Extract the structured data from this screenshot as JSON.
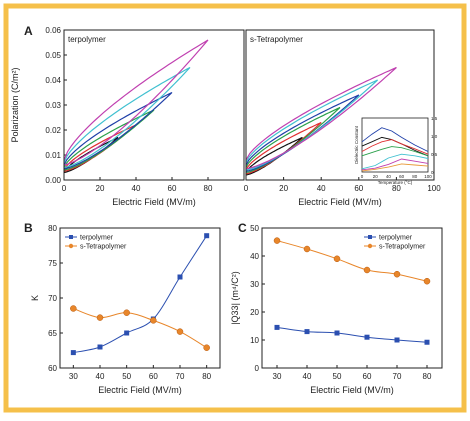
{
  "figure": {
    "border_color": "#f5c04a",
    "panel_labels": [
      "A",
      "B",
      "C"
    ]
  },
  "chart_data": [
    {
      "id": "A-left",
      "type": "line",
      "title": "terpolymer",
      "xlabel": "Electric Field (MV/m)",
      "ylabel": "Polarization (C/m²)",
      "xlim": [
        0,
        100
      ],
      "ylim": [
        0,
        0.06
      ],
      "xticks": [
        0,
        20,
        40,
        60,
        80
      ],
      "yticks": [
        0.0,
        0.01,
        0.02,
        0.03,
        0.04,
        0.05,
        0.06
      ],
      "ytick_labels": [
        "0.00",
        "0.01",
        "0.02",
        "0.03",
        "0.04",
        "0.05",
        "0.06"
      ],
      "series": [
        {
          "color": "#111111",
          "emax": 30,
          "pmax": 0.017,
          "pzero": 0.003,
          "prem": 0.003
        },
        {
          "color": "#e03030",
          "emax": 40,
          "pmax": 0.022,
          "pzero": 0.0035,
          "prem": 0.004
        },
        {
          "color": "#2aa04a",
          "emax": 50,
          "pmax": 0.028,
          "pzero": 0.004,
          "prem": 0.005
        },
        {
          "color": "#1f3fa8",
          "emax": 60,
          "pmax": 0.035,
          "pzero": 0.0045,
          "prem": 0.006
        },
        {
          "color": "#40c0d0",
          "emax": 70,
          "pmax": 0.045,
          "pzero": 0.005,
          "prem": 0.007
        },
        {
          "color": "#c040b0",
          "emax": 80,
          "pmax": 0.056,
          "pzero": 0.006,
          "prem": 0.008
        }
      ]
    },
    {
      "id": "A-right",
      "type": "line",
      "title": "s-Tetrapolymer",
      "xlabel": "Electric Field (MV/m)",
      "xlim": [
        0,
        100
      ],
      "ylim": [
        0,
        0.06
      ],
      "xticks": [
        0,
        20,
        40,
        60,
        80,
        100
      ],
      "series": [
        {
          "color": "#111111",
          "emax": 30,
          "pmax": 0.017,
          "pzero": 0.002,
          "prem": 0.003
        },
        {
          "color": "#e03030",
          "emax": 40,
          "pmax": 0.023,
          "pzero": 0.0025,
          "prem": 0.004
        },
        {
          "color": "#2aa04a",
          "emax": 50,
          "pmax": 0.029,
          "pzero": 0.003,
          "prem": 0.005
        },
        {
          "color": "#1f3fa8",
          "emax": 60,
          "pmax": 0.034,
          "pzero": 0.0035,
          "prem": 0.006
        },
        {
          "color": "#40c0d0",
          "emax": 70,
          "pmax": 0.04,
          "pzero": 0.004,
          "prem": 0.007
        },
        {
          "color": "#c040b0",
          "emax": 80,
          "pmax": 0.045,
          "pzero": 0.0045,
          "prem": 0.008
        }
      ],
      "inset": {
        "xlabel": "Temperature (°C)",
        "ylabel": "Dielectric Constant",
        "xlim": [
          0,
          100
        ],
        "xticks": [
          0,
          20,
          40,
          60,
          80,
          100
        ],
        "ylim_left": [
          0,
          1000
        ],
        "ylim_right": [
          0,
          1.5
        ],
        "right_ticks": [
          "0",
          "0.5",
          "1.0",
          "1.5"
        ],
        "series": [
          {
            "color": "#111111",
            "x": [
              0,
              15,
              30,
              45,
              60,
              80,
              100
            ],
            "y": [
              480,
              560,
              640,
              600,
              520,
              400,
              300
            ]
          },
          {
            "color": "#1f3fa8",
            "x": [
              0,
              15,
              30,
              45,
              60,
              80,
              100
            ],
            "y": [
              560,
              700,
              820,
              760,
              640,
              500,
              380
            ]
          },
          {
            "color": "#e03030",
            "x": [
              0,
              15,
              30,
              45,
              60,
              80,
              100
            ],
            "y": [
              380,
              480,
              560,
              600,
              520,
              430,
              330
            ]
          },
          {
            "color": "#2aa04a",
            "x": [
              0,
              15,
              30,
              45,
              60,
              80,
              100
            ],
            "y": [
              300,
              360,
              420,
              470,
              450,
              380,
              300
            ]
          },
          {
            "color": "#40c0d0",
            "x": [
              0,
              20,
              40,
              60,
              80,
              100
            ],
            "y": [
              60,
              120,
              260,
              330,
              300,
              250
            ]
          },
          {
            "color": "#c040b0",
            "x": [
              0,
              20,
              40,
              60,
              80,
              100
            ],
            "y": [
              40,
              70,
              140,
              240,
              200,
              160
            ]
          },
          {
            "color": "#e89a3a",
            "x": [
              0,
              20,
              40,
              60,
              80,
              100
            ],
            "y": [
              20,
              50,
              90,
              150,
              130,
              110
            ]
          }
        ]
      }
    },
    {
      "id": "B",
      "type": "line",
      "xlabel": "Electric Field (MV/m)",
      "ylabel": "K",
      "xlim": [
        25,
        85
      ],
      "ylim": [
        60,
        80
      ],
      "xticks": [
        30,
        40,
        50,
        60,
        70,
        80
      ],
      "yticks": [
        60,
        65,
        70,
        75,
        80
      ],
      "legend_position": "top-left",
      "series": [
        {
          "name": "terpolymer",
          "color": "#2b4fb0",
          "marker": "square",
          "x": [
            30,
            40,
            50,
            60,
            70,
            80
          ],
          "y": [
            62.2,
            63.0,
            65.0,
            67.0,
            73.0,
            78.9
          ]
        },
        {
          "name": "s-Tetrapolymer",
          "color": "#e8862a",
          "marker": "circle",
          "x": [
            30,
            40,
            50,
            60,
            70,
            80
          ],
          "y": [
            68.5,
            67.2,
            67.9,
            66.8,
            65.2,
            62.9
          ]
        }
      ]
    },
    {
      "id": "C",
      "type": "line",
      "xlabel": "Electric Field (MV/m)",
      "ylabel": "|Q33| (m⁴/C²)",
      "xlim": [
        25,
        85
      ],
      "ylim": [
        0,
        50
      ],
      "xticks": [
        30,
        40,
        50,
        60,
        70,
        80
      ],
      "yticks": [
        0,
        10,
        20,
        30,
        40,
        50
      ],
      "legend_position": "top-right",
      "series": [
        {
          "name": "terpolymer",
          "color": "#2b4fb0",
          "marker": "square",
          "x": [
            30,
            40,
            50,
            60,
            70,
            80
          ],
          "y": [
            14.5,
            13.0,
            12.5,
            11.0,
            10.0,
            9.2
          ]
        },
        {
          "name": "s-Tetrapolymer",
          "color": "#e8862a",
          "marker": "circle",
          "x": [
            30,
            40,
            50,
            60,
            70,
            80
          ],
          "y": [
            45.5,
            42.5,
            39.0,
            35.0,
            33.5,
            31.0
          ]
        }
      ]
    }
  ]
}
